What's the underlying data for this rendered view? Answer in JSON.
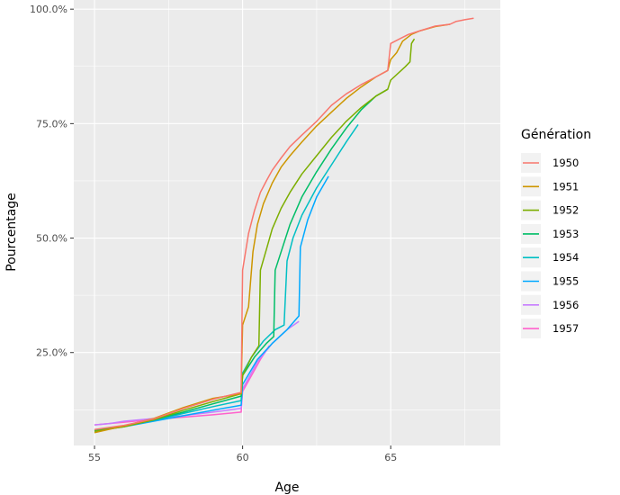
{
  "chart_data": {
    "type": "line",
    "title": "",
    "xlabel": "Age",
    "ylabel": "Pourcentage",
    "xlim": [
      54.3,
      68.7
    ],
    "ylim": [
      0.047,
      1.02
    ],
    "x_ticks": [
      55,
      60,
      65
    ],
    "y_ticks": [
      0.25,
      0.5,
      0.75,
      1.0
    ],
    "y_tick_labels": [
      "25.0%",
      "50.0%",
      "75.0%",
      "100.0%"
    ],
    "grid": true,
    "legend": {
      "title": "Génération",
      "position": "right"
    },
    "series": [
      {
        "name": "1950",
        "color": "#F8766D",
        "x": [
          55,
          56,
          57,
          58,
          59,
          59.95,
          60.0,
          60.1,
          60.2,
          60.4,
          60.6,
          60.8,
          61.0,
          61.3,
          61.6,
          62.0,
          62.5,
          63.0,
          63.5,
          64.0,
          64.5,
          64.9,
          65.0,
          65.3,
          65.6,
          66.0,
          66.5,
          67.0,
          67.2,
          67.5,
          67.8
        ],
        "y": [
          0.082,
          0.091,
          0.105,
          0.128,
          0.148,
          0.163,
          0.43,
          0.47,
          0.51,
          0.56,
          0.6,
          0.625,
          0.648,
          0.675,
          0.7,
          0.725,
          0.755,
          0.79,
          0.815,
          0.835,
          0.852,
          0.866,
          0.925,
          0.935,
          0.945,
          0.953,
          0.963,
          0.967,
          0.973,
          0.977,
          0.98
        ]
      },
      {
        "name": "1951",
        "color": "#CD9600",
        "x": [
          55,
          56,
          57,
          58,
          59,
          59.95,
          60.0,
          60.1,
          60.2,
          60.35,
          60.5,
          60.7,
          61.0,
          61.3,
          61.6,
          62.0,
          62.5,
          63.0,
          63.5,
          64.0,
          64.5,
          64.9,
          65.0,
          65.2,
          65.4,
          65.7,
          66.0,
          66.5,
          67.0
        ],
        "y": [
          0.075,
          0.09,
          0.106,
          0.13,
          0.15,
          0.16,
          0.31,
          0.33,
          0.35,
          0.47,
          0.53,
          0.575,
          0.62,
          0.655,
          0.68,
          0.71,
          0.745,
          0.775,
          0.805,
          0.83,
          0.852,
          0.866,
          0.89,
          0.905,
          0.93,
          0.945,
          0.953,
          0.962,
          0.967
        ]
      },
      {
        "name": "1952",
        "color": "#7CAE00",
        "x": [
          55,
          56,
          57,
          58,
          59,
          59.95,
          60.0,
          60.3,
          60.55,
          60.6,
          60.8,
          61.0,
          61.3,
          61.6,
          62.0,
          62.5,
          63.0,
          63.5,
          64.0,
          64.5,
          64.9,
          65.0,
          65.5,
          65.65,
          65.7,
          65.8
        ],
        "y": [
          0.078,
          0.088,
          0.103,
          0.124,
          0.143,
          0.16,
          0.2,
          0.24,
          0.265,
          0.43,
          0.475,
          0.52,
          0.565,
          0.6,
          0.64,
          0.68,
          0.72,
          0.755,
          0.785,
          0.81,
          0.825,
          0.845,
          0.875,
          0.885,
          0.925,
          0.935
        ]
      },
      {
        "name": "1953",
        "color": "#00BE67",
        "x": [
          55,
          56,
          57,
          58,
          59,
          59.95,
          60.0,
          60.4,
          60.8,
          61.05,
          61.1,
          61.3,
          61.6,
          62.0,
          62.5,
          63.0,
          63.5,
          64.0,
          64.5,
          64.9
        ],
        "y": [
          0.08,
          0.09,
          0.103,
          0.12,
          0.138,
          0.155,
          0.2,
          0.24,
          0.27,
          0.285,
          0.43,
          0.47,
          0.53,
          0.59,
          0.645,
          0.695,
          0.74,
          0.78,
          0.81,
          0.825
        ]
      },
      {
        "name": "1954",
        "color": "#00BFC4",
        "x": [
          55,
          56,
          57,
          58,
          59,
          59.95,
          60.0,
          60.3,
          60.7,
          61.1,
          61.4,
          61.5,
          61.7,
          62.0,
          62.5,
          63.0,
          63.5,
          63.9
        ],
        "y": [
          0.08,
          0.09,
          0.102,
          0.117,
          0.132,
          0.145,
          0.205,
          0.24,
          0.275,
          0.3,
          0.31,
          0.45,
          0.5,
          0.55,
          0.61,
          0.66,
          0.71,
          0.748
        ]
      },
      {
        "name": "1955",
        "color": "#00A9FF",
        "x": [
          55,
          56,
          57,
          58,
          59,
          59.95,
          60.0,
          60.5,
          61.0,
          61.5,
          61.9,
          61.95,
          62.2,
          62.5,
          62.9
        ],
        "y": [
          0.078,
          0.088,
          0.1,
          0.112,
          0.124,
          0.135,
          0.18,
          0.235,
          0.27,
          0.3,
          0.33,
          0.48,
          0.54,
          0.59,
          0.635
        ]
      },
      {
        "name": "1956",
        "color": "#C77CFF",
        "x": [
          55,
          55.5,
          56,
          57,
          58,
          59,
          59.95,
          60.0,
          60.5,
          61.0,
          61.5,
          61.9
        ],
        "y": [
          0.092,
          0.095,
          0.1,
          0.106,
          0.112,
          0.12,
          0.128,
          0.17,
          0.23,
          0.27,
          0.3,
          0.318
        ]
      },
      {
        "name": "1957",
        "color": "#FF61CC",
        "x": [
          55,
          56,
          57,
          58,
          59,
          59.95,
          60.0,
          60.3,
          60.6,
          60.9
        ],
        "y": [
          0.092,
          0.098,
          0.104,
          0.109,
          0.114,
          0.12,
          0.165,
          0.2,
          0.235,
          0.265
        ]
      }
    ]
  }
}
